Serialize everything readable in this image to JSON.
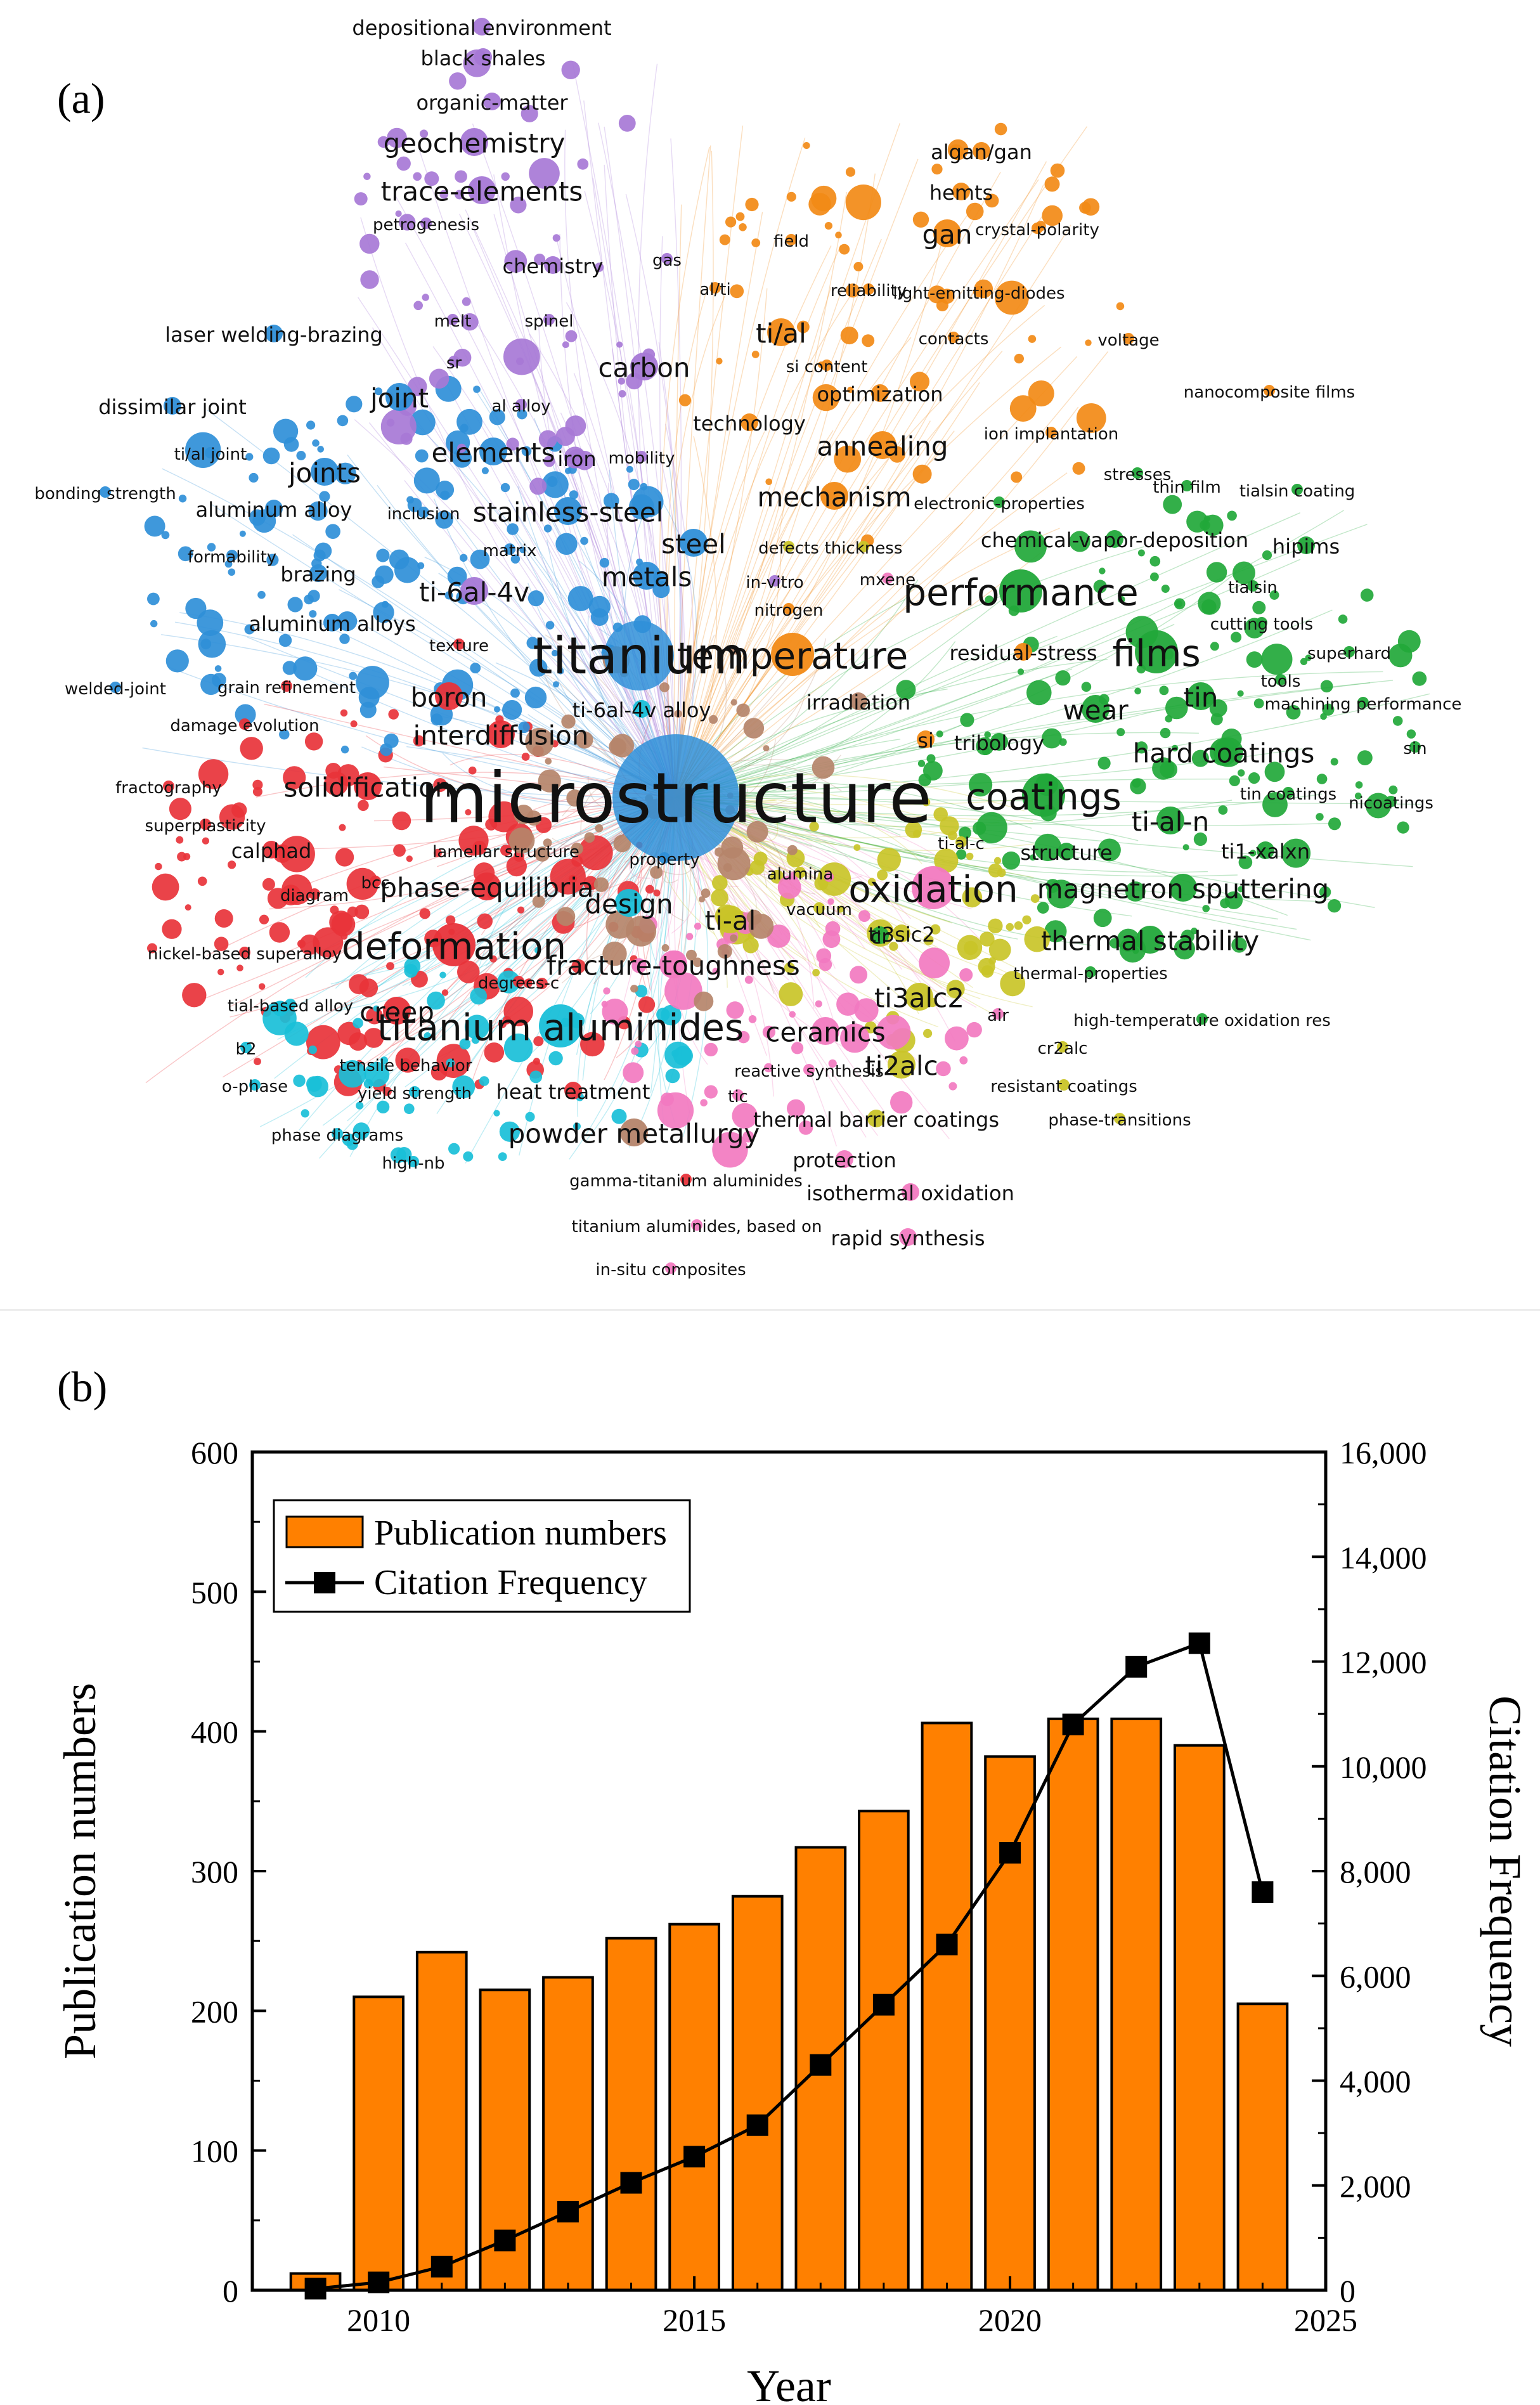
{
  "panel_a": {
    "label": "(a)",
    "cluster_colors": {
      "red": "#e8333a",
      "blue": "#2f8fd8",
      "green": "#22a83a",
      "orange": "#f28a16",
      "purple": "#a778d6",
      "cyan": "#19bfd8",
      "yellow": "#c9c428",
      "pink": "#f27ac0",
      "brown": "#b5846a"
    },
    "keywords": [
      {
        "text": "depositional environment",
        "c": "purple",
        "s": 1
      },
      {
        "text": "black shales",
        "c": "purple",
        "s": 1
      },
      {
        "text": "organic-matter",
        "c": "purple",
        "s": 1
      },
      {
        "text": "geochemistry",
        "c": "purple",
        "s": 2
      },
      {
        "text": "trace-elements",
        "c": "purple",
        "s": 2
      },
      {
        "text": "petrogenesis",
        "c": "purple",
        "s": 0
      },
      {
        "text": "chemistry",
        "c": "purple",
        "s": 1
      },
      {
        "text": "gas",
        "c": "purple",
        "s": 0
      },
      {
        "text": "melt",
        "c": "purple",
        "s": 0
      },
      {
        "text": "spinel",
        "c": "purple",
        "s": 0
      },
      {
        "text": "sr",
        "c": "purple",
        "s": 0
      },
      {
        "text": "al alloy",
        "c": "purple",
        "s": 0
      },
      {
        "text": "carbon",
        "c": "purple",
        "s": 2
      },
      {
        "text": "iron",
        "c": "purple",
        "s": 1
      },
      {
        "text": "mobility",
        "c": "purple",
        "s": 0
      },
      {
        "text": "algan/gan",
        "c": "orange",
        "s": 1
      },
      {
        "text": "hemts",
        "c": "orange",
        "s": 1
      },
      {
        "text": "gan",
        "c": "orange",
        "s": 2
      },
      {
        "text": "crystal-polarity",
        "c": "orange",
        "s": 0
      },
      {
        "text": "field",
        "c": "orange",
        "s": 0
      },
      {
        "text": "al/ti",
        "c": "orange",
        "s": 0
      },
      {
        "text": "reliability",
        "c": "orange",
        "s": 0
      },
      {
        "text": "light-emitting-diodes",
        "c": "orange",
        "s": 0
      },
      {
        "text": "ti/al",
        "c": "orange",
        "s": 2
      },
      {
        "text": "contacts",
        "c": "orange",
        "s": 0
      },
      {
        "text": "voltage",
        "c": "orange",
        "s": 0
      },
      {
        "text": "si content",
        "c": "orange",
        "s": 0
      },
      {
        "text": "optimization",
        "c": "orange",
        "s": 1
      },
      {
        "text": "nanocomposite films",
        "c": "orange",
        "s": 0
      },
      {
        "text": "technology",
        "c": "orange",
        "s": 1
      },
      {
        "text": "ion implantation",
        "c": "orange",
        "s": 0
      },
      {
        "text": "annealing",
        "c": "orange",
        "s": 2
      },
      {
        "text": "stresses",
        "c": "green",
        "s": 0
      },
      {
        "text": "thin film",
        "c": "green",
        "s": 0
      },
      {
        "text": "tialsin coating",
        "c": "green",
        "s": 0
      },
      {
        "text": "laser welding-brazing",
        "c": "blue",
        "s": 1
      },
      {
        "text": "joint",
        "c": "blue",
        "s": 2
      },
      {
        "text": "dissimilar joint",
        "c": "blue",
        "s": 1
      },
      {
        "text": "elements",
        "c": "blue",
        "s": 2
      },
      {
        "text": "ti/al joint",
        "c": "blue",
        "s": 0
      },
      {
        "text": "joints",
        "c": "blue",
        "s": 2
      },
      {
        "text": "bonding strength",
        "c": "blue",
        "s": 0
      },
      {
        "text": "aluminum alloy",
        "c": "blue",
        "s": 1
      },
      {
        "text": "inclusion",
        "c": "blue",
        "s": 0
      },
      {
        "text": "stainless-steel",
        "c": "blue",
        "s": 2
      },
      {
        "text": "mechanism",
        "c": "orange",
        "s": 2
      },
      {
        "text": "electronic-properties",
        "c": "green",
        "s": 0
      },
      {
        "text": "hipims",
        "c": "green",
        "s": 1
      },
      {
        "text": "formability",
        "c": "blue",
        "s": 0
      },
      {
        "text": "matrix",
        "c": "blue",
        "s": 0
      },
      {
        "text": "steel",
        "c": "blue",
        "s": 2
      },
      {
        "text": "defects",
        "c": "yellow",
        "s": 0
      },
      {
        "text": "thickness",
        "c": "yellow",
        "s": 0
      },
      {
        "text": "chemical-vapor-deposition",
        "c": "green",
        "s": 1
      },
      {
        "text": "tialsin",
        "c": "green",
        "s": 0
      },
      {
        "text": "brazing",
        "c": "blue",
        "s": 1
      },
      {
        "text": "ti-6al-4v",
        "c": "purple",
        "s": 2
      },
      {
        "text": "metals",
        "c": "blue",
        "s": 2
      },
      {
        "text": "in-vitro",
        "c": "purple",
        "s": 0
      },
      {
        "text": "mxene",
        "c": "pink",
        "s": 0
      },
      {
        "text": "performance",
        "c": "green",
        "s": 3
      },
      {
        "text": "aluminum alloys",
        "c": "blue",
        "s": 1
      },
      {
        "text": "nitrogen",
        "c": "orange",
        "s": 0
      },
      {
        "text": "cutting tools",
        "c": "green",
        "s": 0
      },
      {
        "text": "texture",
        "c": "red",
        "s": 0
      },
      {
        "text": "titanium",
        "c": "blue",
        "s": 4
      },
      {
        "text": "temperature",
        "c": "orange",
        "s": 3
      },
      {
        "text": "residual-stress",
        "c": "orange",
        "s": 1
      },
      {
        "text": "films",
        "c": "green",
        "s": 3
      },
      {
        "text": "superhard",
        "c": "green",
        "s": 0
      },
      {
        "text": "welded-joint",
        "c": "blue",
        "s": 0
      },
      {
        "text": "grain refinement",
        "c": "red",
        "s": 0
      },
      {
        "text": "boron",
        "c": "red",
        "s": 2
      },
      {
        "text": "tools",
        "c": "green",
        "s": 0
      },
      {
        "text": "ti-6al-4v alloy",
        "c": "cyan",
        "s": 1
      },
      {
        "text": "irradiation",
        "c": "brown",
        "s": 1
      },
      {
        "text": "tin",
        "c": "green",
        "s": 2
      },
      {
        "text": "machining performance",
        "c": "green",
        "s": 0
      },
      {
        "text": "damage evolution",
        "c": "red",
        "s": 0
      },
      {
        "text": "interdiffusion",
        "c": "red",
        "s": 2
      },
      {
        "text": "wear",
        "c": "green",
        "s": 2
      },
      {
        "text": "si",
        "c": "orange",
        "s": 1
      },
      {
        "text": "tribology",
        "c": "green",
        "s": 1
      },
      {
        "text": "hard coatings",
        "c": "green",
        "s": 2
      },
      {
        "text": "sin",
        "c": "green",
        "s": 0
      },
      {
        "text": "fractography",
        "c": "red",
        "s": 0
      },
      {
        "text": "solidification",
        "c": "red",
        "s": 2
      },
      {
        "text": "microstructure",
        "c": "blue",
        "s": 5
      },
      {
        "text": "coatings",
        "c": "green",
        "s": 3
      },
      {
        "text": "tin coatings",
        "c": "green",
        "s": 0
      },
      {
        "text": "nicoatings",
        "c": "green",
        "s": 0
      },
      {
        "text": "superplasticity",
        "c": "red",
        "s": 0
      },
      {
        "text": "ti-al-c",
        "c": "yellow",
        "s": 0
      },
      {
        "text": "ti-al-n",
        "c": "green",
        "s": 2
      },
      {
        "text": "calphad",
        "c": "red",
        "s": 1
      },
      {
        "text": "lamellar structure",
        "c": "red",
        "s": 0
      },
      {
        "text": "property",
        "c": "blue",
        "s": 0
      },
      {
        "text": "structure",
        "c": "green",
        "s": 1
      },
      {
        "text": "ti1-xalxn",
        "c": "green",
        "s": 1
      },
      {
        "text": "diagram",
        "c": "red",
        "s": 0
      },
      {
        "text": "bcc",
        "c": "red",
        "s": 0
      },
      {
        "text": "phase-equilibria",
        "c": "red",
        "s": 2
      },
      {
        "text": "alumina",
        "c": "yellow",
        "s": 0
      },
      {
        "text": "oxidation",
        "c": "pink",
        "s": 3
      },
      {
        "text": "magnetron sputtering",
        "c": "green",
        "s": 2
      },
      {
        "text": "vacuum",
        "c": "yellow",
        "s": 0
      },
      {
        "text": "design",
        "c": "cyan",
        "s": 2
      },
      {
        "text": "deformation",
        "c": "red",
        "s": 3
      },
      {
        "text": "ti-al",
        "c": "yellow",
        "s": 2
      },
      {
        "text": "cr",
        "c": "green",
        "s": 1
      },
      {
        "text": "ti3sic2",
        "c": "yellow",
        "s": 1
      },
      {
        "text": "thermal stability",
        "c": "green",
        "s": 2
      },
      {
        "text": "nickel-based superalloy",
        "c": "red",
        "s": 0
      },
      {
        "text": "fracture-toughness",
        "c": "pink",
        "s": 2
      },
      {
        "text": "thermal-properties",
        "c": "green",
        "s": 0
      },
      {
        "text": "degrees-c",
        "c": "red",
        "s": 0
      },
      {
        "text": "ti3alc2",
        "c": "yellow",
        "s": 2
      },
      {
        "text": "tial-based alloy",
        "c": "cyan",
        "s": 0
      },
      {
        "text": "creep",
        "c": "red",
        "s": 2
      },
      {
        "text": "titanium aluminides",
        "c": "cyan",
        "s": 3
      },
      {
        "text": "air",
        "c": "pink",
        "s": 0
      },
      {
        "text": "high-temperature oxidation res",
        "c": "green",
        "s": 0
      },
      {
        "text": "ceramics",
        "c": "pink",
        "s": 2
      },
      {
        "text": "b2",
        "c": "cyan",
        "s": 0
      },
      {
        "text": "cr2alc",
        "c": "yellow",
        "s": 0
      },
      {
        "text": "tensile behavior",
        "c": "red",
        "s": 0
      },
      {
        "text": "reactive synthesis",
        "c": "pink",
        "s": 0
      },
      {
        "text": "ti2alc",
        "c": "yellow",
        "s": 2
      },
      {
        "text": "o-phase",
        "c": "cyan",
        "s": 0
      },
      {
        "text": "resistant coatings",
        "c": "yellow",
        "s": 0
      },
      {
        "text": "yield strength",
        "c": "cyan",
        "s": 0
      },
      {
        "text": "heat treatment",
        "c": "red",
        "s": 1
      },
      {
        "text": "tic",
        "c": "pink",
        "s": 0
      },
      {
        "text": "phase diagrams",
        "c": "cyan",
        "s": 0
      },
      {
        "text": "thermal barrier coatings",
        "c": "yellow",
        "s": 1
      },
      {
        "text": "phase-transitions",
        "c": "yellow",
        "s": 0
      },
      {
        "text": "powder metallurgy",
        "c": "brown",
        "s": 2
      },
      {
        "text": "high-nb",
        "c": "cyan",
        "s": 0
      },
      {
        "text": "protection",
        "c": "pink",
        "s": 1
      },
      {
        "text": "gamma-titanium aluminides",
        "c": "red",
        "s": 0
      },
      {
        "text": "isothermal oxidation",
        "c": "pink",
        "s": 1
      },
      {
        "text": "titanium aluminides, based on",
        "c": "pink",
        "s": 0
      },
      {
        "text": "rapid synthesis",
        "c": "pink",
        "s": 1
      },
      {
        "text": "in-situ composites",
        "c": "pink",
        "s": 0
      }
    ]
  },
  "panel_b": {
    "label": "(b)",
    "chart_data": {
      "type": "bar",
      "title": "",
      "xlabel": "Year",
      "ylabel": "Publication numbers",
      "y2label": "Citation Frequency",
      "xlim": [
        2008,
        2025
      ],
      "ylim": [
        0,
        600
      ],
      "y2lim": [
        0,
        16000
      ],
      "x_ticks": [
        "2010",
        "2015",
        "2020",
        "2025"
      ],
      "y_ticks": [
        "0",
        "100",
        "200",
        "300",
        "400",
        "500",
        "600"
      ],
      "y2_ticks": [
        "0",
        "2,000",
        "4,000",
        "6,000",
        "8,000",
        "10,000",
        "12,000",
        "14,000",
        "16,000"
      ],
      "legend_position": "top-left",
      "series": [
        {
          "name": "Publication numbers",
          "kind": "bar",
          "axis": "left",
          "color": "#ff8000",
          "x": [
            2009,
            2010,
            2011,
            2012,
            2013,
            2014,
            2015,
            2016,
            2017,
            2018,
            2019,
            2020,
            2021,
            2022,
            2023,
            2024
          ],
          "values": [
            12,
            210,
            242,
            215,
            224,
            252,
            262,
            282,
            317,
            343,
            406,
            382,
            409,
            409,
            390,
            205
          ]
        },
        {
          "name": "Citation Frequency",
          "kind": "line",
          "axis": "right",
          "color": "#000000",
          "x": [
            2009,
            2010,
            2011,
            2012,
            2013,
            2014,
            2015,
            2016,
            2017,
            2018,
            2019,
            2020,
            2021,
            2022,
            2023,
            2024
          ],
          "values": [
            30,
            150,
            450,
            950,
            1500,
            2050,
            2550,
            3150,
            4300,
            5450,
            6600,
            8350,
            10800,
            11900,
            12350,
            7600
          ]
        }
      ]
    }
  }
}
